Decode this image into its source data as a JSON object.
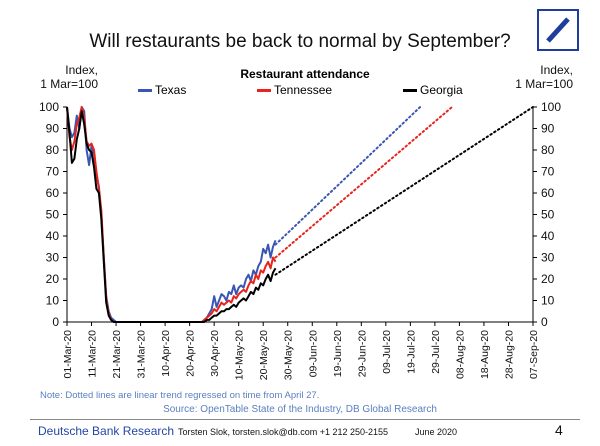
{
  "header": {
    "title": "Will restaurants be back to normal by September?"
  },
  "left_axis_note": "Index,\n1 Mar=100",
  "right_axis_note": "Index,\n1 Mar=100",
  "legend_title": "Restaurant attendance",
  "note": "Note: Dotted lines are linear trend regressed on time from April 27.",
  "source": "Source: OpenTable State of the Industry, DB Global Research",
  "footer": {
    "brand": "Deutsche Bank Research",
    "contact": "Torsten Slok, torsten.slok@db.com  +1 212 250-2155",
    "date": "June 2020",
    "page": "4"
  },
  "colors": {
    "texas": "#3a56b3",
    "tennessee": "#e8231c",
    "georgia": "#000000",
    "logo": "#1f3e9c",
    "accent_text": "#5a7fc0"
  },
  "chart_data": {
    "type": "line",
    "title": "Will restaurants be back to normal by September?",
    "xlabel": "",
    "ylabel": "Index, 1 Mar=100",
    "ylim": [
      0,
      100
    ],
    "yticks": [
      0,
      10,
      20,
      30,
      40,
      50,
      60,
      70,
      80,
      90,
      100
    ],
    "xlim_days": [
      0,
      190
    ],
    "xticks": [
      {
        "day": 0,
        "label": "01-Mar-20"
      },
      {
        "day": 10,
        "label": "11-Mar-20"
      },
      {
        "day": 20,
        "label": "21-Mar-20"
      },
      {
        "day": 30,
        "label": "31-Mar-20"
      },
      {
        "day": 40,
        "label": "10-Apr-20"
      },
      {
        "day": 50,
        "label": "20-Apr-20"
      },
      {
        "day": 60,
        "label": "30-Apr-20"
      },
      {
        "day": 70,
        "label": "10-May-20"
      },
      {
        "day": 80,
        "label": "20-May-20"
      },
      {
        "day": 90,
        "label": "30-May-20"
      },
      {
        "day": 100,
        "label": "09-Jun-20"
      },
      {
        "day": 110,
        "label": "19-Jun-20"
      },
      {
        "day": 120,
        "label": "29-Jun-20"
      },
      {
        "day": 130,
        "label": "09-Jul-20"
      },
      {
        "day": 140,
        "label": "19-Jul-20"
      },
      {
        "day": 150,
        "label": "29-Jul-20"
      },
      {
        "day": 160,
        "label": "08-Aug-20"
      },
      {
        "day": 170,
        "label": "18-Aug-20"
      },
      {
        "day": 180,
        "label": "28-Aug-20"
      },
      {
        "day": 190,
        "label": "07-Sep-20"
      }
    ],
    "series": [
      {
        "name": "Texas",
        "color": "#3a56b3",
        "x": [
          0,
          1,
          2,
          3,
          4,
          5,
          6,
          7,
          8,
          9,
          10,
          11,
          12,
          13,
          14,
          15,
          16,
          17,
          18,
          19,
          20,
          22,
          24,
          30,
          40,
          50,
          55,
          56,
          57,
          58,
          59,
          60,
          61,
          62,
          63,
          64,
          65,
          66,
          67,
          68,
          69,
          70,
          71,
          72,
          73,
          74,
          75,
          76,
          77,
          78,
          79,
          80,
          81,
          82,
          83,
          84,
          85
        ],
        "values": [
          100,
          90,
          86,
          88,
          96,
          90,
          100,
          98,
          80,
          73,
          82,
          78,
          68,
          63,
          50,
          30,
          12,
          5,
          2,
          1,
          0,
          0,
          0,
          0,
          0,
          0,
          0,
          1,
          2,
          4,
          6,
          12,
          7,
          10,
          13,
          12,
          10,
          14,
          13,
          17,
          13,
          16,
          17,
          16,
          20,
          22,
          19,
          24,
          22,
          26,
          28,
          34,
          32,
          36,
          30,
          35,
          38
        ],
        "trend": {
          "from": [
            85,
            36
          ],
          "to": [
            144,
            100
          ]
        }
      },
      {
        "name": "Tennessee",
        "color": "#e8231c",
        "x": [
          0,
          1,
          2,
          3,
          4,
          5,
          6,
          7,
          8,
          9,
          10,
          11,
          12,
          13,
          14,
          15,
          16,
          17,
          18,
          19,
          20,
          22,
          24,
          30,
          40,
          50,
          55,
          56,
          57,
          58,
          59,
          60,
          61,
          62,
          63,
          64,
          65,
          66,
          67,
          68,
          69,
          70,
          71,
          72,
          73,
          74,
          75,
          76,
          77,
          78,
          79,
          80,
          81,
          82,
          83,
          84,
          85
        ],
        "values": [
          100,
          86,
          80,
          84,
          92,
          95,
          100,
          95,
          84,
          82,
          83,
          80,
          70,
          62,
          52,
          30,
          11,
          4,
          1,
          0,
          0,
          0,
          0,
          0,
          0,
          0,
          0,
          1,
          2,
          3,
          4,
          6,
          5,
          7,
          9,
          8,
          9,
          10,
          9,
          12,
          11,
          13,
          14,
          15,
          14,
          17,
          19,
          18,
          22,
          20,
          24,
          23,
          26,
          28,
          25,
          30,
          28
        ],
        "trend": {
          "from": [
            85,
            30
          ],
          "to": [
            157,
            100
          ]
        }
      },
      {
        "name": "Georgia",
        "color": "#000000",
        "x": [
          0,
          1,
          2,
          3,
          4,
          5,
          6,
          7,
          8,
          9,
          10,
          11,
          12,
          13,
          14,
          15,
          16,
          17,
          18,
          19,
          20,
          22,
          24,
          30,
          40,
          50,
          55,
          56,
          57,
          58,
          59,
          60,
          61,
          62,
          63,
          64,
          65,
          66,
          67,
          68,
          69,
          70,
          71,
          72,
          73,
          74,
          75,
          76,
          77,
          78,
          79,
          80,
          81,
          82,
          83,
          84,
          85
        ],
        "values": [
          100,
          88,
          74,
          76,
          85,
          90,
          98,
          92,
          83,
          80,
          79,
          72,
          62,
          60,
          48,
          28,
          9,
          3,
          1,
          0,
          0,
          0,
          0,
          0,
          0,
          0,
          0,
          0,
          1,
          1,
          2,
          3,
          3,
          4,
          5,
          5,
          6,
          6,
          7,
          8,
          7,
          9,
          10,
          11,
          10,
          12,
          14,
          13,
          16,
          15,
          18,
          17,
          20,
          22,
          19,
          23,
          25
        ],
        "trend": {
          "from": [
            85,
            22
          ],
          "to": [
            190,
            100
          ]
        }
      }
    ]
  }
}
